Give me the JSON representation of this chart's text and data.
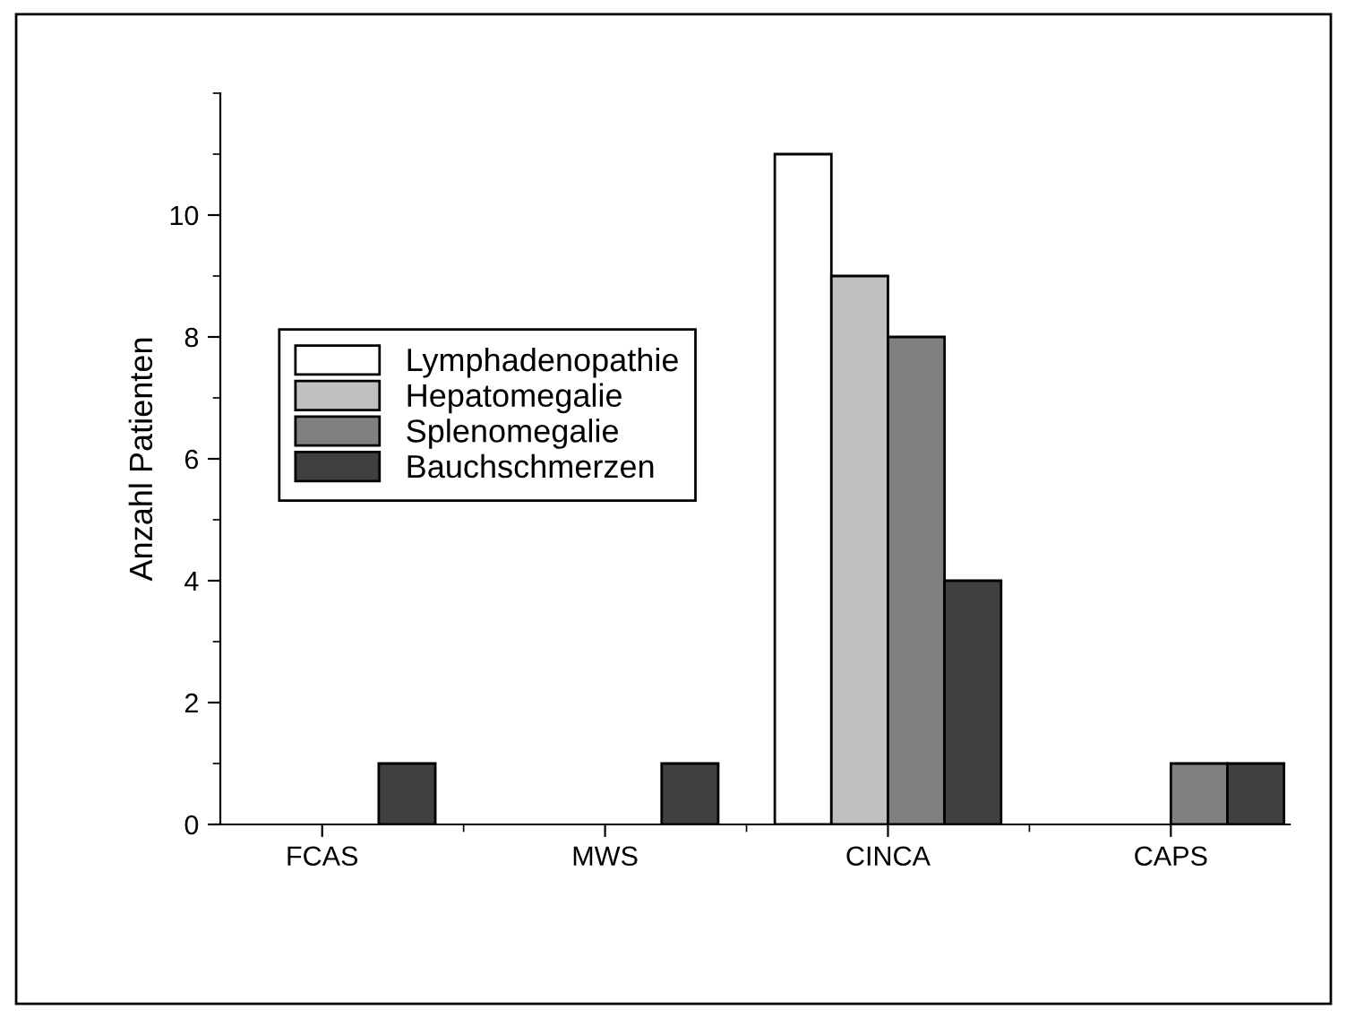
{
  "chart_data": {
    "type": "bar",
    "ylabel": "Anzahl Patienten",
    "categories": [
      "FCAS",
      "MWS",
      "CINCA",
      "CAPS"
    ],
    "series": [
      {
        "name": "Lymphadenopathie",
        "color": "#ffffff",
        "values": [
          0,
          0,
          11,
          0
        ]
      },
      {
        "name": "Hepatomegalie",
        "color": "#c0c0c0",
        "values": [
          0,
          0,
          9,
          0
        ]
      },
      {
        "name": "Splenomegalie",
        "color": "#808080",
        "values": [
          0,
          0,
          8,
          1
        ]
      },
      {
        "name": "Bauchschmerzen",
        "color": "#404040",
        "values": [
          1,
          1,
          4,
          1
        ]
      }
    ],
    "ylim": [
      0,
      12
    ],
    "yticks": [
      0,
      2,
      4,
      6,
      8,
      10
    ],
    "grid": false,
    "legend": "left"
  }
}
